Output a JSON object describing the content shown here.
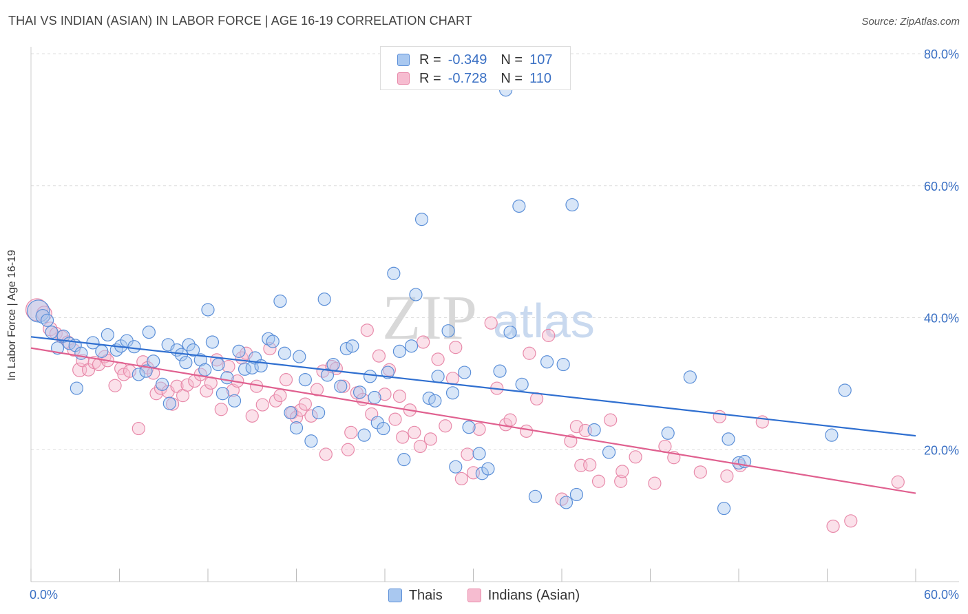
{
  "header": {
    "title": "THAI VS INDIAN (ASIAN) IN LABOR FORCE | AGE 16-19 CORRELATION CHART",
    "source": "Source: ZipAtlas.com"
  },
  "watermark": {
    "zip": "ZIP",
    "atlas": "atlas"
  },
  "legend_stats": [
    {
      "r_label": "R =",
      "r_value": "-0.349",
      "n_label": "N =",
      "n_value": "107"
    },
    {
      "r_label": "R =",
      "r_value": "-0.728",
      "n_label": "N =",
      "n_value": "110"
    }
  ],
  "colors": {
    "thai_fill": "#a9c8f0",
    "thai_stroke": "#5b8fd8",
    "thai_line": "#2f6fd0",
    "indian_fill": "#f6bcd0",
    "indian_stroke": "#e88aaa",
    "indian_line": "#e0608f",
    "axis_text": "#3a70c4",
    "grid": "#dddddd"
  },
  "chart_data": {
    "type": "scatter",
    "title": "THAI VS INDIAN (ASIAN) IN LABOR FORCE | AGE 16-19 CORRELATION CHART",
    "ylabel": "In Labor Force | Age 16-19",
    "xlim": [
      0,
      60
    ],
    "ylim": [
      0,
      80
    ],
    "x_tick_labels": [
      "0.0%",
      "60.0%"
    ],
    "y_ticks": [
      20,
      40,
      60,
      80
    ],
    "y_tick_labels": [
      "20.0%",
      "40.0%",
      "60.0%",
      "80.0%"
    ],
    "grid": true,
    "legend_position": "top-center",
    "series": [
      {
        "name": "Thais",
        "trend": {
          "x": [
            0,
            60
          ],
          "y": [
            37.1,
            22.1
          ]
        },
        "points": [
          [
            0.5,
            41,
            16
          ],
          [
            0.8,
            40.2,
            10
          ],
          [
            1.1,
            39.6,
            9
          ],
          [
            1.4,
            37.8,
            9
          ],
          [
            1.8,
            35.4,
            9
          ],
          [
            2.2,
            37.2,
            9
          ],
          [
            2.6,
            36.1,
            9
          ],
          [
            3.0,
            35.8,
            9
          ],
          [
            3.4,
            34.6,
            9
          ],
          [
            3.1,
            29.3,
            9
          ],
          [
            4.2,
            36.2,
            9
          ],
          [
            4.8,
            34.9,
            9
          ],
          [
            5.2,
            37.4,
            9
          ],
          [
            5.8,
            35.1,
            9
          ],
          [
            6.1,
            35.7,
            9
          ],
          [
            6.5,
            36.5,
            9
          ],
          [
            7.0,
            35.6,
            9
          ],
          [
            7.3,
            31.4,
            9
          ],
          [
            7.8,
            31.9,
            9
          ],
          [
            8.0,
            37.8,
            9
          ],
          [
            8.3,
            33.4,
            9
          ],
          [
            8.9,
            29.9,
            9
          ],
          [
            9.3,
            35.9,
            9
          ],
          [
            9.4,
            27.0,
            9
          ],
          [
            9.9,
            35.1,
            9
          ],
          [
            10.2,
            34.4,
            9
          ],
          [
            10.5,
            33.2,
            9
          ],
          [
            10.7,
            35.9,
            9
          ],
          [
            11.0,
            35.1,
            9
          ],
          [
            11.5,
            33.6,
            9
          ],
          [
            11.8,
            32.1,
            9
          ],
          [
            12.0,
            41.2,
            9
          ],
          [
            12.3,
            36.3,
            9
          ],
          [
            12.7,
            32.9,
            9
          ],
          [
            13.0,
            28.5,
            9
          ],
          [
            13.3,
            30.9,
            9
          ],
          [
            13.8,
            27.4,
            9
          ],
          [
            14.1,
            34.9,
            9
          ],
          [
            14.5,
            32.2,
            9
          ],
          [
            15.0,
            32.4,
            9
          ],
          [
            15.2,
            33.9,
            9
          ],
          [
            15.6,
            32.7,
            9
          ],
          [
            16.1,
            36.8,
            9
          ],
          [
            16.4,
            36.4,
            9
          ],
          [
            16.9,
            42.5,
            9
          ],
          [
            17.2,
            34.6,
            9
          ],
          [
            17.6,
            25.6,
            9
          ],
          [
            18.0,
            23.3,
            9
          ],
          [
            18.2,
            34.1,
            9
          ],
          [
            18.6,
            30.6,
            9
          ],
          [
            19.0,
            21.3,
            9
          ],
          [
            19.5,
            25.6,
            9
          ],
          [
            19.9,
            42.8,
            9
          ],
          [
            20.1,
            31.3,
            9
          ],
          [
            20.5,
            32.9,
            9
          ],
          [
            21.0,
            29.6,
            9
          ],
          [
            21.4,
            35.3,
            9
          ],
          [
            21.8,
            35.7,
            9
          ],
          [
            22.3,
            28.7,
            9
          ],
          [
            22.6,
            22.2,
            9
          ],
          [
            23.0,
            31.1,
            9
          ],
          [
            23.3,
            27.9,
            9
          ],
          [
            23.5,
            24.1,
            9
          ],
          [
            23.9,
            23.2,
            9
          ],
          [
            24.2,
            31.7,
            9
          ],
          [
            24.6,
            46.7,
            9
          ],
          [
            25.0,
            34.9,
            9
          ],
          [
            25.3,
            18.5,
            9
          ],
          [
            25.8,
            35.7,
            9
          ],
          [
            26.1,
            43.5,
            9
          ],
          [
            26.5,
            54.9,
            9
          ],
          [
            27.0,
            27.8,
            9
          ],
          [
            27.4,
            27.4,
            9
          ],
          [
            27.6,
            31.1,
            9
          ],
          [
            28.3,
            38.0,
            9
          ],
          [
            28.6,
            28.6,
            9
          ],
          [
            28.8,
            17.4,
            9
          ],
          [
            29.4,
            31.7,
            9
          ],
          [
            29.7,
            23.4,
            9
          ],
          [
            30.4,
            19.4,
            9
          ],
          [
            30.6,
            16.4,
            9
          ],
          [
            31.0,
            17.1,
            9
          ],
          [
            31.8,
            31.9,
            9
          ],
          [
            32.2,
            74.5,
            9
          ],
          [
            32.5,
            37.8,
            9
          ],
          [
            33.3,
            29.9,
            9
          ],
          [
            33.1,
            56.9,
            9
          ],
          [
            34.2,
            12.9,
            9
          ],
          [
            35.0,
            33.3,
            9
          ],
          [
            36.1,
            32.9,
            9
          ],
          [
            36.3,
            12.0,
            9
          ],
          [
            36.7,
            57.1,
            9
          ],
          [
            37.0,
            13.2,
            9
          ],
          [
            38.2,
            23.0,
            9
          ],
          [
            39.2,
            19.6,
            9
          ],
          [
            43.2,
            22.5,
            9
          ],
          [
            44.7,
            31.0,
            9
          ],
          [
            47.0,
            11.1,
            9
          ],
          [
            47.3,
            21.6,
            9
          ],
          [
            48.0,
            18.0,
            9
          ],
          [
            48.4,
            18.2,
            9
          ],
          [
            54.3,
            22.2,
            9
          ],
          [
            55.2,
            29.0,
            9
          ]
        ]
      },
      {
        "name": "Indians (Asian)",
        "trend": {
          "x": [
            0,
            60
          ],
          "y": [
            35.4,
            13.4
          ]
        },
        "points": [
          [
            0.4,
            41.2,
            16
          ],
          [
            0.9,
            40.6,
            11
          ],
          [
            1.3,
            38.3,
            10
          ],
          [
            1.7,
            37.6,
            9
          ],
          [
            2.1,
            37.1,
            9
          ],
          [
            2.5,
            36.3,
            9
          ],
          [
            2.9,
            35.1,
            9
          ],
          [
            3.3,
            32.1,
            10
          ],
          [
            3.5,
            33.5,
            9
          ],
          [
            3.9,
            32.1,
            9
          ],
          [
            4.3,
            33.2,
            9
          ],
          [
            4.6,
            32.9,
            9
          ],
          [
            5.0,
            34.1,
            9
          ],
          [
            5.2,
            33.5,
            9
          ],
          [
            5.7,
            29.7,
            9
          ],
          [
            6.1,
            32.3,
            9
          ],
          [
            6.3,
            31.4,
            9
          ],
          [
            6.7,
            31.9,
            9
          ],
          [
            7.3,
            23.2,
            9
          ],
          [
            7.6,
            33.3,
            9
          ],
          [
            7.9,
            32.4,
            9
          ],
          [
            8.3,
            31.6,
            9
          ],
          [
            8.5,
            28.5,
            9
          ],
          [
            8.8,
            29.3,
            9
          ],
          [
            9.3,
            28.8,
            9
          ],
          [
            9.6,
            26.9,
            9
          ],
          [
            9.9,
            29.6,
            9
          ],
          [
            10.3,
            28.2,
            9
          ],
          [
            10.6,
            29.8,
            9
          ],
          [
            11.1,
            30.4,
            9
          ],
          [
            11.5,
            31.4,
            9
          ],
          [
            11.9,
            28.9,
            9
          ],
          [
            12.2,
            30.1,
            9
          ],
          [
            12.6,
            33.6,
            9
          ],
          [
            12.9,
            26.1,
            9
          ],
          [
            13.4,
            32.6,
            9
          ],
          [
            13.7,
            29.0,
            9
          ],
          [
            14.0,
            30.4,
            9
          ],
          [
            14.3,
            33.9,
            9
          ],
          [
            14.6,
            34.6,
            9
          ],
          [
            15.0,
            25.1,
            9
          ],
          [
            15.3,
            29.6,
            9
          ],
          [
            15.7,
            26.8,
            9
          ],
          [
            16.2,
            35.3,
            9
          ],
          [
            16.6,
            27.4,
            9
          ],
          [
            16.9,
            28.2,
            9
          ],
          [
            17.3,
            30.6,
            9
          ],
          [
            17.7,
            25.6,
            9
          ],
          [
            18.0,
            24.9,
            9
          ],
          [
            18.3,
            26.0,
            9
          ],
          [
            18.6,
            26.9,
            9
          ],
          [
            19.0,
            25.1,
            9
          ],
          [
            19.4,
            29.1,
            9
          ],
          [
            19.8,
            31.9,
            9
          ],
          [
            20.0,
            19.3,
            9
          ],
          [
            20.4,
            32.6,
            9
          ],
          [
            20.7,
            32.3,
            9
          ],
          [
            21.2,
            29.6,
            9
          ],
          [
            21.5,
            20.0,
            9
          ],
          [
            21.7,
            22.6,
            9
          ],
          [
            22.1,
            28.6,
            9
          ],
          [
            22.5,
            27.6,
            9
          ],
          [
            22.8,
            38.1,
            9
          ],
          [
            23.1,
            25.4,
            9
          ],
          [
            23.6,
            34.2,
            9
          ],
          [
            24.0,
            28.4,
            9
          ],
          [
            24.3,
            32.1,
            9
          ],
          [
            24.7,
            24.6,
            9
          ],
          [
            25.0,
            28.1,
            9
          ],
          [
            25.2,
            21.9,
            9
          ],
          [
            25.7,
            26.0,
            9
          ],
          [
            26.0,
            22.6,
            9
          ],
          [
            26.4,
            20.5,
            9
          ],
          [
            26.6,
            36.3,
            9
          ],
          [
            27.1,
            21.6,
            9
          ],
          [
            27.6,
            33.7,
            9
          ],
          [
            28.1,
            23.6,
            9
          ],
          [
            28.6,
            30.8,
            9
          ],
          [
            28.8,
            35.5,
            9
          ],
          [
            29.2,
            15.6,
            9
          ],
          [
            29.6,
            19.3,
            9
          ],
          [
            30.0,
            16.5,
            9
          ],
          [
            30.4,
            23.1,
            9
          ],
          [
            31.2,
            39.2,
            9
          ],
          [
            31.6,
            29.3,
            9
          ],
          [
            32.2,
            23.8,
            9
          ],
          [
            32.5,
            24.5,
            9
          ],
          [
            33.6,
            22.8,
            9
          ],
          [
            33.8,
            34.6,
            9
          ],
          [
            34.3,
            27.7,
            9
          ],
          [
            35.1,
            37.3,
            9
          ],
          [
            36.0,
            12.5,
            9
          ],
          [
            36.6,
            21.3,
            9
          ],
          [
            37.0,
            23.5,
            9
          ],
          [
            37.3,
            17.6,
            9
          ],
          [
            37.6,
            22.9,
            9
          ],
          [
            37.9,
            17.7,
            9
          ],
          [
            38.5,
            15.2,
            9
          ],
          [
            39.3,
            24.5,
            9
          ],
          [
            40.0,
            15.2,
            9
          ],
          [
            40.1,
            16.7,
            9
          ],
          [
            41.0,
            18.9,
            9
          ],
          [
            42.3,
            14.9,
            9
          ],
          [
            43.0,
            20.5,
            9
          ],
          [
            43.6,
            18.8,
            9
          ],
          [
            45.4,
            16.6,
            9
          ],
          [
            46.7,
            25.0,
            9
          ],
          [
            47.2,
            16.0,
            9
          ],
          [
            48.1,
            17.6,
            9
          ],
          [
            49.6,
            24.2,
            9
          ],
          [
            54.4,
            8.4,
            9
          ],
          [
            55.6,
            9.2,
            9
          ],
          [
            58.8,
            15.1,
            9
          ]
        ]
      }
    ]
  }
}
